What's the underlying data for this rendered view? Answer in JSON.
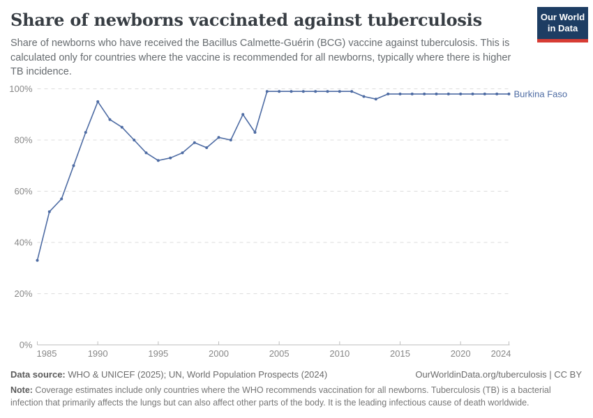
{
  "header": {
    "title": "Share of newborns vaccinated against tuberculosis",
    "subtitle": "Share of newborns who have received the Bacillus Calmette-Guérin (BCG) vaccine against tuberculosis. This is calculated only for countries where the vaccine is recommended for all newborns, typically where there is higher TB incidence.",
    "logo": {
      "line1": "Our World",
      "line2": "in Data"
    }
  },
  "chart_data": {
    "type": "line",
    "title": "Share of newborns vaccinated against tuberculosis",
    "x": [
      1985,
      1986,
      1987,
      1988,
      1989,
      1990,
      1991,
      1992,
      1993,
      1994,
      1995,
      1996,
      1997,
      1998,
      1999,
      2000,
      2001,
      2002,
      2003,
      2004,
      2005,
      2006,
      2007,
      2008,
      2009,
      2010,
      2011,
      2012,
      2013,
      2014,
      2015,
      2016,
      2017,
      2018,
      2019,
      2020,
      2021,
      2022,
      2023,
      2024
    ],
    "series": [
      {
        "name": "Burkina Faso",
        "values": [
          33,
          52,
          57,
          70,
          83,
          95,
          88,
          85,
          80,
          75,
          72,
          73,
          75,
          79,
          77,
          81,
          80,
          90,
          83,
          99,
          99,
          99,
          99,
          99,
          99,
          99,
          99,
          97,
          96,
          98,
          98,
          98,
          98,
          98,
          98,
          98,
          98,
          98,
          98,
          98
        ]
      }
    ],
    "xlabel": "",
    "ylabel": "",
    "ylim": [
      0,
      100
    ],
    "yticks": [
      0,
      20,
      40,
      60,
      80,
      100
    ],
    "ytick_suffix": "%",
    "xticks": [
      1985,
      1990,
      1995,
      2000,
      2005,
      2010,
      2015,
      2020,
      2024
    ],
    "grid": "horizontal-dashed",
    "legend_position": "end-of-line-label",
    "line_color": "#4d6ba3"
  },
  "footer": {
    "datasource_label": "Data source:",
    "datasource_value": " WHO & UNICEF (2025); UN, World Population Prospects (2024)",
    "citation": "OurWorldinData.org/tuberculosis | CC BY",
    "note_label": "Note:",
    "note_value": " Coverage estimates include only countries where the WHO recommends vaccination for all newborns. Tuberculosis (TB) is a bacterial infection that primarily affects the lungs but can also affect other parts of the body. It is the leading infectious cause of death worldwide."
  },
  "colors": {
    "accent": "#4d6ba3",
    "grid": "#dcdcdc",
    "axis": "#bdbdbd",
    "logo_navy": "#1d3d63",
    "logo_red": "#d73c34"
  }
}
